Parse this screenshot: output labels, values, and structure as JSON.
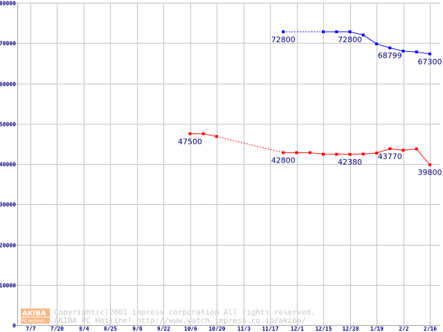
{
  "chart_data": {
    "type": "line",
    "title": "",
    "xlabel": "",
    "ylabel": "",
    "ylim": [
      0,
      80000
    ],
    "yticks": [
      0,
      10000,
      20000,
      30000,
      40000,
      50000,
      60000,
      70000,
      80000
    ],
    "ytick_labels": [
      "0",
      "10000",
      "20000",
      "30000",
      "40000",
      "50000",
      "60000",
      "70000",
      "80000"
    ],
    "categories": [
      "7/7",
      "7/20",
      "8/4",
      "8/25",
      "9/8",
      "9/22",
      "10/6",
      "10/20",
      "11/3",
      "11/17",
      "12/1",
      "12/15",
      "12/28",
      "1/19",
      "2/2",
      "2/16"
    ],
    "grid": true,
    "series": [
      {
        "name": "blue",
        "color": "#0000ff",
        "x": [
          9.5,
          11,
          11.5,
          12,
          12.5,
          13,
          13.5,
          14,
          14.5,
          15
        ],
        "values": [
          72800,
          72800,
          72800,
          72800,
          72000,
          69800,
          68799,
          68000,
          67800,
          67300
        ],
        "dashed_segments": [
          0
        ],
        "annotations": [
          {
            "x": 9.5,
            "value": 72800,
            "text": "72800"
          },
          {
            "x": 12,
            "value": 72800,
            "text": "72800"
          },
          {
            "x": 13.5,
            "value": 68799,
            "text": "68799"
          },
          {
            "x": 15,
            "value": 67300,
            "text": "67300"
          }
        ]
      },
      {
        "name": "red",
        "color": "#ff0000",
        "x": [
          6,
          6.5,
          7,
          9.5,
          10,
          10.5,
          11,
          11.5,
          12,
          12.5,
          13,
          13.5,
          14,
          14.5,
          15
        ],
        "values": [
          47500,
          47500,
          46800,
          42800,
          42800,
          42800,
          42400,
          42400,
          42380,
          42450,
          42700,
          43770,
          43400,
          43720,
          39800
        ],
        "dashed_segments": [
          2
        ],
        "annotations": [
          {
            "x": 6,
            "value": 47500,
            "text": "47500"
          },
          {
            "x": 9.5,
            "value": 42800,
            "text": "42800"
          },
          {
            "x": 12,
            "value": 42380,
            "text": "42380"
          },
          {
            "x": 13.5,
            "value": 43770,
            "text": "43770"
          },
          {
            "x": 15,
            "value": 39800,
            "text": "39800"
          }
        ]
      }
    ]
  },
  "watermark": {
    "logo_top": "AKIBA",
    "logo_bottom": "PC Hotline!",
    "line1": "Copyright(c)2001 impress corporation All rights reserved.",
    "line2": "AKIBA PC Hotline!  http://www.watch.impress.co.jp/akiba/"
  }
}
